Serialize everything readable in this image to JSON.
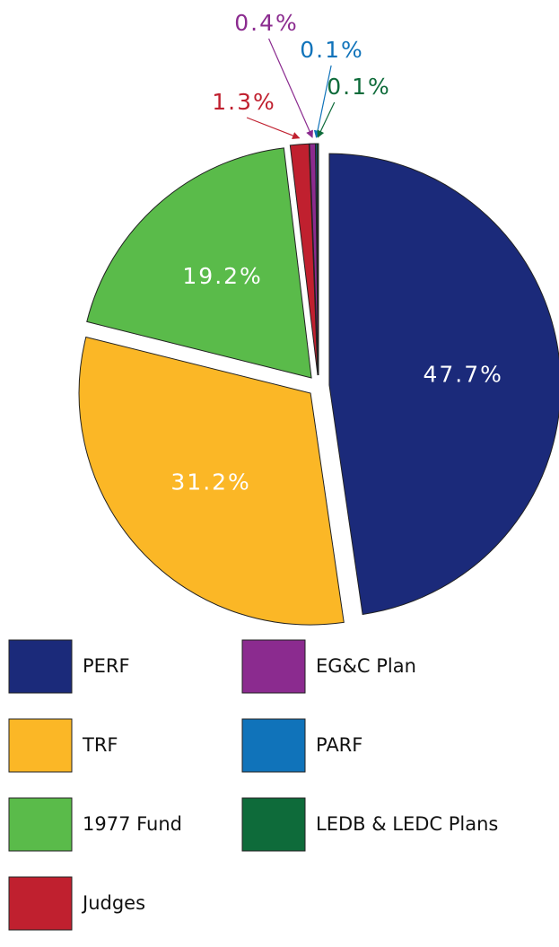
{
  "chart_data": {
    "type": "pie",
    "categories": [
      "PERF",
      "TRF",
      "1977 Fund",
      "Judges",
      "EG&C Plan",
      "PARF",
      "LEDB & LEDC Plans"
    ],
    "values": [
      47.7,
      31.2,
      19.2,
      1.3,
      0.4,
      0.1,
      0.1
    ],
    "value_labels": [
      "47.7%",
      "31.2%",
      "19.2%",
      "1.3%",
      "0.4%",
      "0.1%",
      "0.1%"
    ],
    "colors": [
      "#1b2a7a",
      "#fbb726",
      "#5abb4a",
      "#c0202f",
      "#8b2b8f",
      "#1073ba",
      "#0e6b3a"
    ]
  }
}
